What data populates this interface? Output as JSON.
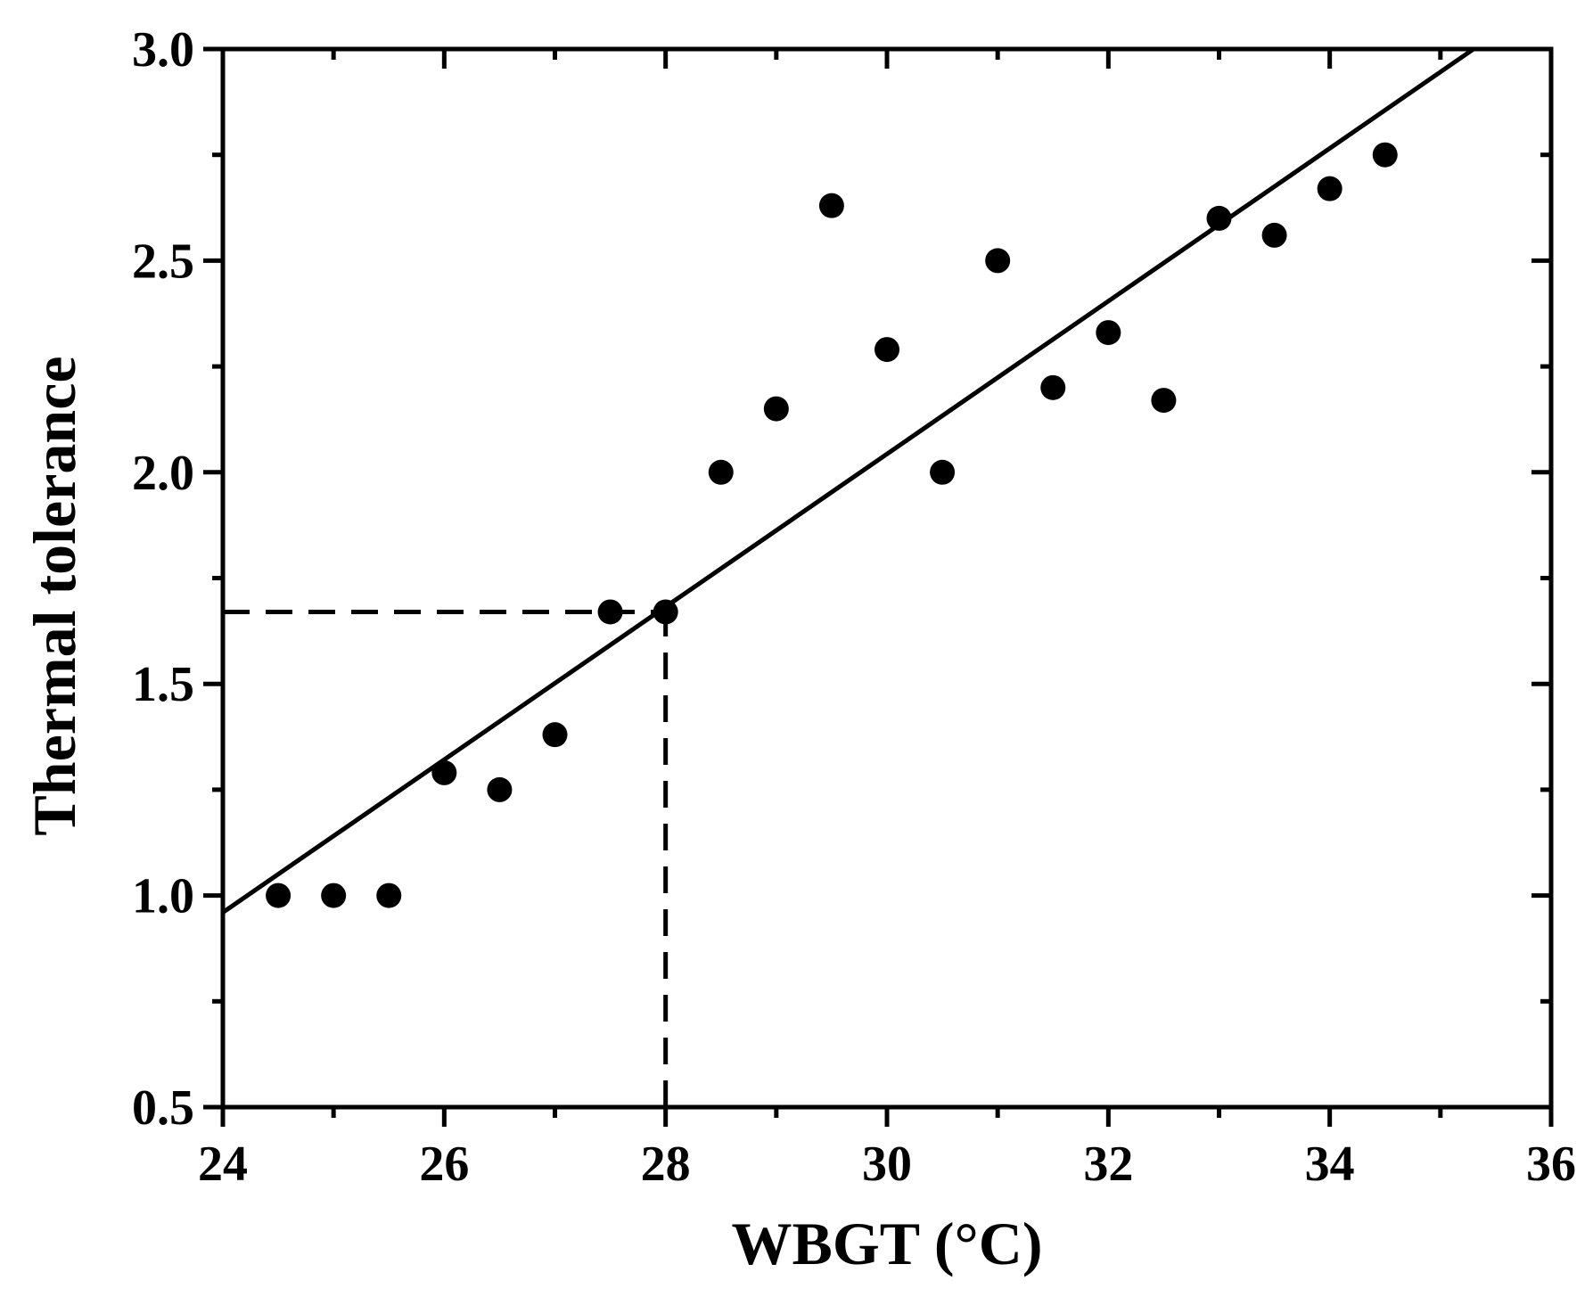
{
  "chart_data": {
    "type": "scatter",
    "title": "",
    "xlabel": "WBGT (°C)",
    "ylabel": "Thermal tolerance",
    "xlim": [
      24,
      36
    ],
    "ylim": [
      0.5,
      3.0
    ],
    "x_ticks": [
      24,
      26,
      28,
      30,
      32,
      34,
      36
    ],
    "x_tick_labels": [
      "24",
      "26",
      "28",
      "30",
      "32",
      "34",
      "36"
    ],
    "x_minor_step": 1,
    "y_ticks": [
      0.5,
      1.0,
      1.5,
      2.0,
      2.5,
      3.0
    ],
    "y_tick_labels": [
      "0.5",
      "1.0",
      "1.5",
      "2.0",
      "2.5",
      "3.0"
    ],
    "y_minor_step": 0.25,
    "grid": false,
    "legend": "none",
    "colors": {
      "marker": "#000000",
      "line": "#000000",
      "axis": "#000000"
    },
    "series": [
      {
        "type": "scatter",
        "x": [
          24.5,
          25.0,
          25.5,
          26.0,
          26.5,
          27.0,
          27.5,
          28.0,
          28.5,
          29.0,
          29.5,
          30.0,
          30.5,
          31.0,
          31.5,
          32.0,
          32.5,
          33.0,
          33.5,
          34.0,
          34.5
        ],
        "y": [
          1.0,
          1.0,
          1.0,
          1.29,
          1.25,
          1.38,
          1.67,
          1.67,
          2.0,
          2.15,
          2.63,
          2.29,
          2.0,
          2.5,
          2.2,
          2.33,
          2.17,
          2.6,
          2.56,
          2.67,
          2.75
        ]
      },
      {
        "type": "line",
        "x": [
          24.0,
          35.3
        ],
        "y": [
          0.96,
          3.0
        ]
      }
    ],
    "reference_lines": [
      {
        "style": "dashed",
        "x": [
          24.0,
          28.0
        ],
        "y": [
          1.67,
          1.67
        ]
      },
      {
        "style": "dashed",
        "x": [
          28.0,
          28.0
        ],
        "y": [
          0.5,
          1.67
        ]
      }
    ]
  }
}
